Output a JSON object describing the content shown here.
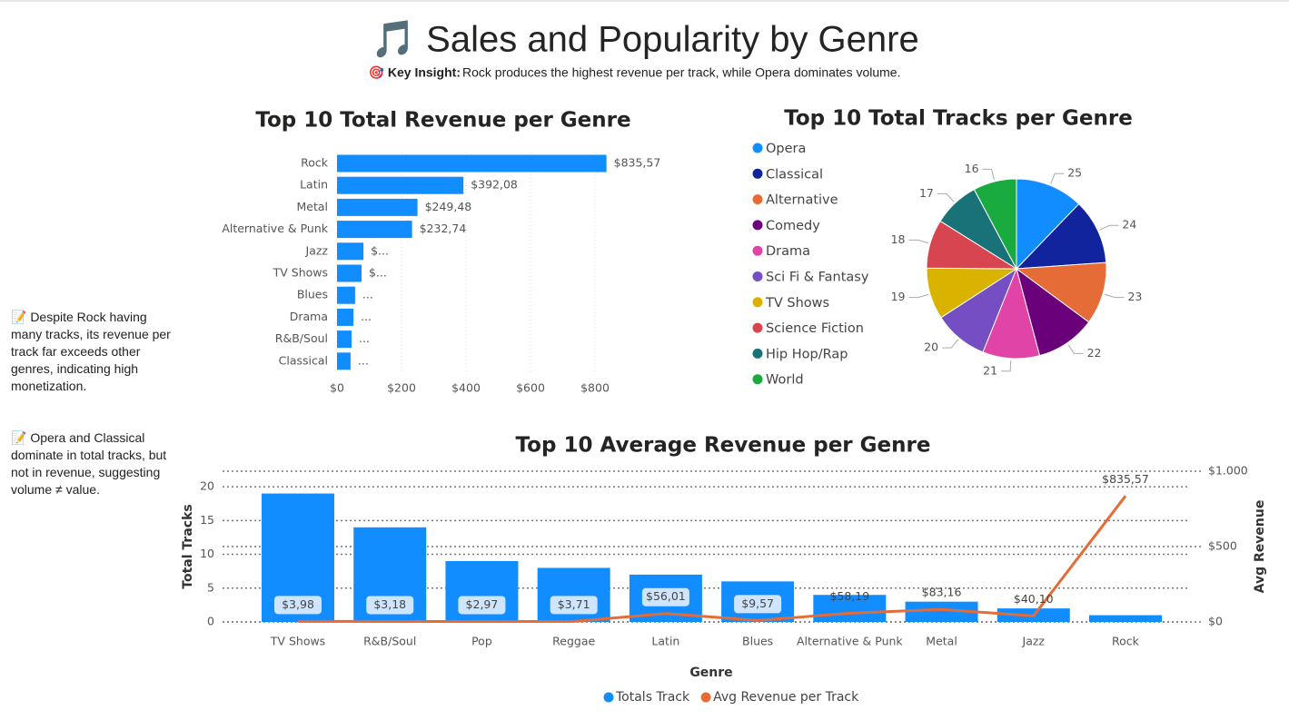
{
  "header": {
    "title": "🎵 Sales and Popularity by Genre",
    "insight_label": "🎯 Key Insight:",
    "insight_text": "Rock produces the highest revenue per track, while Opera dominates volume."
  },
  "notes": [
    "📝 Despite Rock having many tracks, its revenue per track far exceeds other genres, indicating high monetization.",
    "📝 Opera and Classical dominate in total tracks, but not in revenue, suggesting volume ≠ value."
  ],
  "chart_data": [
    {
      "type": "bar",
      "orientation": "horizontal",
      "title": "Top 10 Total Revenue per Genre",
      "categories": [
        "Rock",
        "Latin",
        "Metal",
        "Alternative & Punk",
        "Jazz",
        "TV Shows",
        "Blues",
        "Drama",
        "R&B/Soul",
        "Classical"
      ],
      "values": [
        835.57,
        392.08,
        249.48,
        232.74,
        82,
        76,
        56,
        51,
        45,
        42
      ],
      "value_labels": [
        "$835,57",
        "$392,08",
        "$249,48",
        "$232,74",
        "$...",
        "$...",
        "...",
        "...",
        "...",
        "..."
      ],
      "color": "#118DFF",
      "xlim": [
        0,
        900
      ],
      "xticks": [
        {
          "value": 0,
          "label": "$0"
        },
        {
          "value": 200,
          "label": "$200"
        },
        {
          "value": 400,
          "label": "$400"
        },
        {
          "value": 600,
          "label": "$600"
        },
        {
          "value": 800,
          "label": "$800"
        }
      ],
      "grid": true
    },
    {
      "type": "pie",
      "title": "Top 10 Total Tracks per Genre",
      "categories": [
        "Opera",
        "Classical",
        "Alternative",
        "Comedy",
        "Drama",
        "Sci Fi & Fantasy",
        "TV Shows",
        "Science Fiction",
        "Hip Hop/Rap",
        "World"
      ],
      "values": [
        25,
        24,
        23,
        22,
        21,
        20,
        19,
        18,
        17,
        16
      ],
      "colors": [
        "#118DFF",
        "#12239E",
        "#E66C37",
        "#6B007B",
        "#E044A7",
        "#744EC2",
        "#D9B300",
        "#D64550",
        "#197278",
        "#1AAB40"
      ],
      "legend": "left"
    },
    {
      "type": "combo",
      "title": "Top 10 Average Revenue per Genre",
      "x_label": "Genre",
      "y_label": "Total Tracks",
      "y2_label": "Avg Revenue",
      "categories": [
        "TV Shows",
        "R&B/Soul",
        "Pop",
        "Reggae",
        "Latin",
        "Blues",
        "Alternative & Punk",
        "Metal",
        "Jazz",
        "Rock"
      ],
      "series": [
        {
          "name": "Totals Track",
          "color": "#118DFF",
          "values": [
            19,
            14,
            9,
            8,
            7,
            6,
            4,
            3,
            2,
            1
          ]
        },
        {
          "name": "Avg Revenue per Track",
          "color": "#E66C37",
          "axis": "y2",
          "values": [
            3.98,
            3.18,
            2.97,
            3.71,
            56.01,
            9.57,
            58.19,
            83.16,
            40.1,
            835.57
          ],
          "value_labels": [
            "$3,98",
            "$3,18",
            "$2,97",
            "$3,71",
            "$56,01",
            "$9,57",
            "$58,19",
            "$83,16",
            "$40,10",
            "$835,57"
          ]
        }
      ],
      "ylim": [
        0,
        22.3
      ],
      "yticks": [
        0,
        5,
        10,
        15,
        20
      ],
      "y2lim": [
        0,
        1000
      ],
      "y2ticks": [
        {
          "value": 0,
          "label": "$0"
        },
        {
          "value": 500,
          "label": "$500"
        },
        {
          "value": 1000,
          "label": "$1.000"
        }
      ],
      "grid": true,
      "legend": "bottom"
    }
  ]
}
